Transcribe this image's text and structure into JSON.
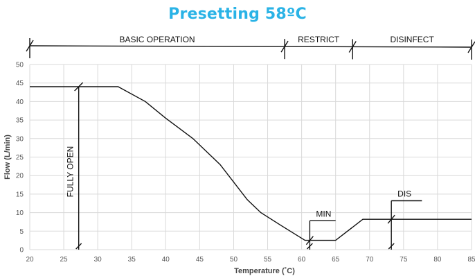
{
  "title": "Presetting 58ºC",
  "chart_data": {
    "type": "line",
    "title": "Presetting 58ºC",
    "xlabel": "Temperature (˚C)",
    "ylabel": "Flow (L/min)",
    "xlim": [
      20,
      85
    ],
    "ylim": [
      0,
      50
    ],
    "x_ticks": [
      20,
      25,
      30,
      35,
      40,
      45,
      50,
      55,
      60,
      65,
      70,
      75,
      80,
      85
    ],
    "y_ticks": [
      0,
      5,
      10,
      15,
      20,
      25,
      30,
      35,
      40,
      45,
      50
    ],
    "grid": true,
    "series": [
      {
        "x": [
          20,
          33,
          37,
          40,
          44,
          48,
          52,
          54,
          57,
          60.5,
          65,
          69,
          85
        ],
        "y": [
          44,
          44,
          40,
          35.5,
          30,
          23,
          13.5,
          10,
          6.5,
          2.5,
          2.5,
          8.2,
          8.2
        ]
      }
    ],
    "ranges": [
      {
        "label": "BASIC OPERATION",
        "from": 20,
        "to": 57.5
      },
      {
        "label": "RESTRICT",
        "from": 57.5,
        "to": 67.5
      },
      {
        "label": "DISINFECT",
        "from": 67.5,
        "to": 85
      }
    ],
    "markers": [
      {
        "label": "FULLY OPEN",
        "x": 27.2,
        "y_from": 0,
        "y_to": 44
      },
      {
        "label": "MIN",
        "x": 61.2,
        "y_from": 0,
        "y_to": 7.8,
        "flag_to_x": 65
      },
      {
        "label": "DIS",
        "x": 73.2,
        "y_from": 0,
        "y_to": 13.2,
        "flag_to_x": 77.7
      }
    ]
  }
}
